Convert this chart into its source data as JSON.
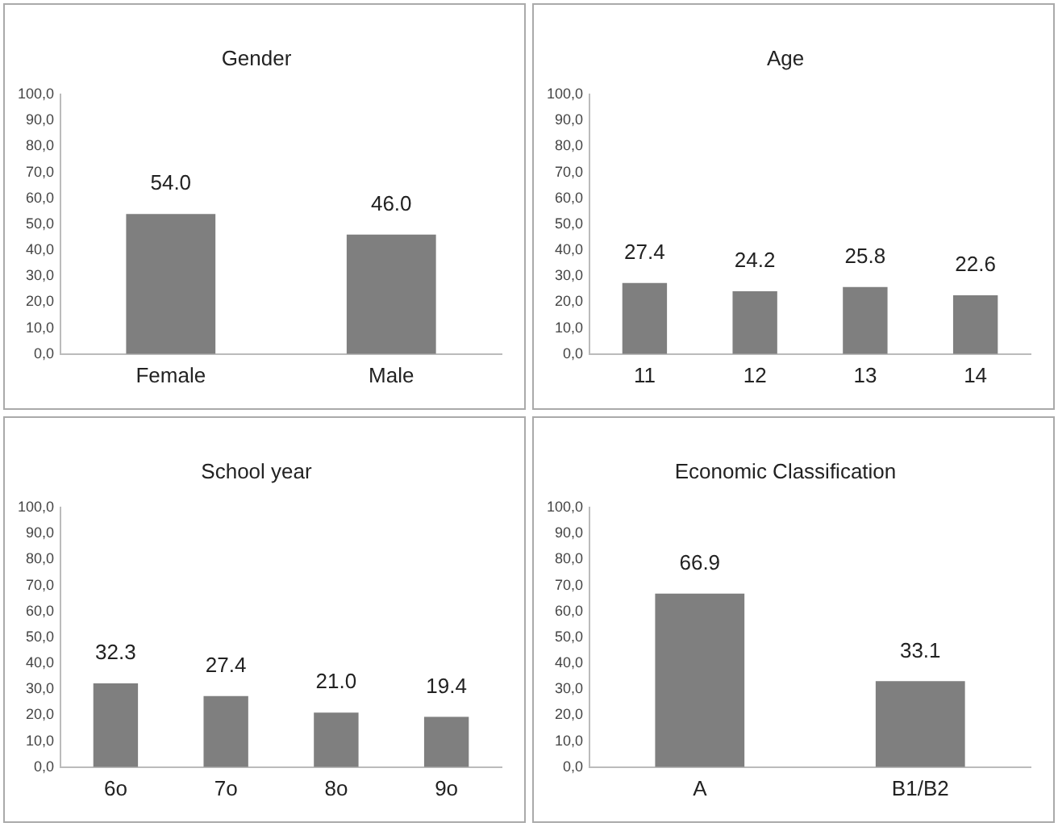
{
  "chart_data": [
    {
      "type": "bar",
      "title": "Gender",
      "categories": [
        "Female",
        "Male"
      ],
      "values": [
        54.0,
        46.0
      ],
      "value_labels": [
        "54.0",
        "46.0"
      ],
      "color": "#7f7f7f",
      "ylim": [
        0,
        100
      ],
      "yticks": [
        {
          "value": 0,
          "label": "0,0"
        },
        {
          "value": 10,
          "label": "10,0"
        },
        {
          "value": 20,
          "label": "20,0"
        },
        {
          "value": 30,
          "label": "30,0"
        },
        {
          "value": 40,
          "label": "40,0"
        },
        {
          "value": 50,
          "label": "50,0"
        },
        {
          "value": 60,
          "label": "60,0"
        },
        {
          "value": 70,
          "label": "70,0"
        },
        {
          "value": 80,
          "label": "80,0"
        },
        {
          "value": 90,
          "label": "90,0"
        },
        {
          "value": 100,
          "label": "100,0"
        }
      ],
      "grid": false,
      "legend": false
    },
    {
      "type": "bar",
      "title": "Age",
      "categories": [
        "11",
        "12",
        "13",
        "14"
      ],
      "values": [
        27.4,
        24.2,
        25.8,
        22.6
      ],
      "value_labels": [
        "27.4",
        "24.2",
        "25.8",
        "22.6"
      ],
      "color": "#7f7f7f",
      "ylim": [
        0,
        100
      ],
      "yticks": [
        {
          "value": 0,
          "label": "0,0"
        },
        {
          "value": 10,
          "label": "10,0"
        },
        {
          "value": 20,
          "label": "20,0"
        },
        {
          "value": 30,
          "label": "30,0"
        },
        {
          "value": 40,
          "label": "40,0"
        },
        {
          "value": 50,
          "label": "50,0"
        },
        {
          "value": 60,
          "label": "60,0"
        },
        {
          "value": 70,
          "label": "70,0"
        },
        {
          "value": 80,
          "label": "80,0"
        },
        {
          "value": 90,
          "label": "90,0"
        },
        {
          "value": 100,
          "label": "100,0"
        }
      ],
      "grid": false,
      "legend": false
    },
    {
      "type": "bar",
      "title": "School year",
      "categories": [
        "6o",
        "7o",
        "8o",
        "9o"
      ],
      "values": [
        32.3,
        27.4,
        21.0,
        19.4
      ],
      "value_labels": [
        "32.3",
        "27.4",
        "21.0",
        "19.4"
      ],
      "color": "#7f7f7f",
      "ylim": [
        0,
        100
      ],
      "yticks": [
        {
          "value": 0,
          "label": "0,0"
        },
        {
          "value": 10,
          "label": "10,0"
        },
        {
          "value": 20,
          "label": "20,0"
        },
        {
          "value": 30,
          "label": "30,0"
        },
        {
          "value": 40,
          "label": "40,0"
        },
        {
          "value": 50,
          "label": "50,0"
        },
        {
          "value": 60,
          "label": "60,0"
        },
        {
          "value": 70,
          "label": "70,0"
        },
        {
          "value": 80,
          "label": "80,0"
        },
        {
          "value": 90,
          "label": "90,0"
        },
        {
          "value": 100,
          "label": "100,0"
        }
      ],
      "grid": false,
      "legend": false
    },
    {
      "type": "bar",
      "title": "Economic Classification",
      "categories": [
        "A",
        "B1/B2"
      ],
      "values": [
        66.9,
        33.1
      ],
      "value_labels": [
        "66.9",
        "33.1"
      ],
      "color": "#7f7f7f",
      "ylim": [
        0,
        100
      ],
      "yticks": [
        {
          "value": 0,
          "label": "0,0"
        },
        {
          "value": 10,
          "label": "10,0"
        },
        {
          "value": 20,
          "label": "20,0"
        },
        {
          "value": 30,
          "label": "30,0"
        },
        {
          "value": 40,
          "label": "40,0"
        },
        {
          "value": 50,
          "label": "50,0"
        },
        {
          "value": 60,
          "label": "60,0"
        },
        {
          "value": 70,
          "label": "70,0"
        },
        {
          "value": 80,
          "label": "80,0"
        },
        {
          "value": 90,
          "label": "90,0"
        },
        {
          "value": 100,
          "label": "100,0"
        }
      ],
      "grid": false,
      "legend": false
    }
  ]
}
